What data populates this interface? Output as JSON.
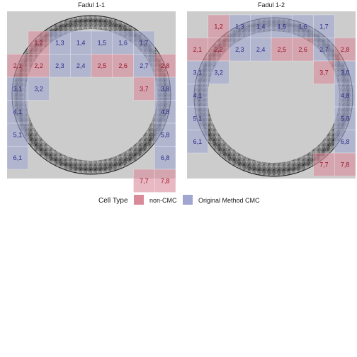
{
  "chart_data": {
    "type": "heatmap",
    "legend": {
      "title": "Cell Type",
      "placement": "bottom",
      "entries": [
        {
          "label": "non-CMC",
          "color": "#d98b9a"
        },
        {
          "label": "Original Method CMC",
          "color": "#9fa6cf"
        }
      ]
    },
    "colors": {
      "panel_background": "#cccccc",
      "non_cmc_text": "#a0102a",
      "cmc_text": "#2a2a8a"
    },
    "grid": {
      "rows": 8,
      "cols": 8
    },
    "panels": [
      {
        "title": "Fadul 1-1",
        "cells": [
          {
            "label": "1,2",
            "row": 1,
            "col": 2,
            "type": "non-CMC"
          },
          {
            "label": "1,3",
            "row": 1,
            "col": 3,
            "type": "Original Method CMC"
          },
          {
            "label": "1,4",
            "row": 1,
            "col": 4,
            "type": "Original Method CMC"
          },
          {
            "label": "1,5",
            "row": 1,
            "col": 5,
            "type": "Original Method CMC"
          },
          {
            "label": "1,6",
            "row": 1,
            "col": 6,
            "type": "Original Method CMC"
          },
          {
            "label": "1,7",
            "row": 1,
            "col": 7,
            "type": "Original Method CMC"
          },
          {
            "label": "2,1",
            "row": 2,
            "col": 1,
            "type": "non-CMC"
          },
          {
            "label": "2,2",
            "row": 2,
            "col": 2,
            "type": "non-CMC"
          },
          {
            "label": "2,3",
            "row": 2,
            "col": 3,
            "type": "Original Method CMC"
          },
          {
            "label": "2,4",
            "row": 2,
            "col": 4,
            "type": "Original Method CMC"
          },
          {
            "label": "2,5",
            "row": 2,
            "col": 5,
            "type": "non-CMC"
          },
          {
            "label": "2,6",
            "row": 2,
            "col": 6,
            "type": "non-CMC"
          },
          {
            "label": "2,7",
            "row": 2,
            "col": 7,
            "type": "Original Method CMC"
          },
          {
            "label": "2,8",
            "row": 2,
            "col": 8,
            "type": "non-CMC"
          },
          {
            "label": "3,1",
            "row": 3,
            "col": 1,
            "type": "Original Method CMC"
          },
          {
            "label": "3,2",
            "row": 3,
            "col": 2,
            "type": "Original Method CMC"
          },
          {
            "label": "3,7",
            "row": 3,
            "col": 7,
            "type": "non-CMC"
          },
          {
            "label": "3,8",
            "row": 3,
            "col": 8,
            "type": "Original Method CMC"
          },
          {
            "label": "4,1",
            "row": 4,
            "col": 1,
            "type": "Original Method CMC"
          },
          {
            "label": "4,8",
            "row": 4,
            "col": 8,
            "type": "Original Method CMC"
          },
          {
            "label": "5,1",
            "row": 5,
            "col": 1,
            "type": "Original Method CMC"
          },
          {
            "label": "5,8",
            "row": 5,
            "col": 8,
            "type": "Original Method CMC"
          },
          {
            "label": "6,1",
            "row": 6,
            "col": 1,
            "type": "Original Method CMC"
          },
          {
            "label": "6,8",
            "row": 6,
            "col": 8,
            "type": "Original Method CMC"
          },
          {
            "label": "7,7",
            "row": 7,
            "col": 7,
            "type": "non-CMC"
          },
          {
            "label": "7,8",
            "row": 7,
            "col": 8,
            "type": "non-CMC"
          }
        ]
      },
      {
        "title": "Fadul 1-2",
        "cells": [
          {
            "label": "1,2",
            "row": 1,
            "col": 2,
            "type": "non-CMC"
          },
          {
            "label": "1,3",
            "row": 1,
            "col": 3,
            "type": "Original Method CMC"
          },
          {
            "label": "1,4",
            "row": 1,
            "col": 4,
            "type": "Original Method CMC"
          },
          {
            "label": "1,5",
            "row": 1,
            "col": 5,
            "type": "Original Method CMC"
          },
          {
            "label": "1,6",
            "row": 1,
            "col": 6,
            "type": "Original Method CMC"
          },
          {
            "label": "1,7",
            "row": 1,
            "col": 7,
            "type": "Original Method CMC"
          },
          {
            "label": "2,1",
            "row": 2,
            "col": 1,
            "type": "non-CMC"
          },
          {
            "label": "2,2",
            "row": 2,
            "col": 2,
            "type": "non-CMC"
          },
          {
            "label": "2,3",
            "row": 2,
            "col": 3,
            "type": "Original Method CMC"
          },
          {
            "label": "2,4",
            "row": 2,
            "col": 4,
            "type": "Original Method CMC"
          },
          {
            "label": "2,5",
            "row": 2,
            "col": 5,
            "type": "non-CMC"
          },
          {
            "label": "2,6",
            "row": 2,
            "col": 6,
            "type": "non-CMC"
          },
          {
            "label": "2,7",
            "row": 2,
            "col": 7,
            "type": "Original Method CMC"
          },
          {
            "label": "2,8",
            "row": 2,
            "col": 8,
            "type": "non-CMC"
          },
          {
            "label": "3,1",
            "row": 3,
            "col": 1,
            "type": "Original Method CMC"
          },
          {
            "label": "3,2",
            "row": 3,
            "col": 2,
            "type": "Original Method CMC"
          },
          {
            "label": "3,7",
            "row": 3,
            "col": 7,
            "type": "non-CMC"
          },
          {
            "label": "3,8",
            "row": 3,
            "col": 8,
            "type": "Original Method CMC"
          },
          {
            "label": "4,1",
            "row": 4,
            "col": 1,
            "type": "Original Method CMC"
          },
          {
            "label": "4,8",
            "row": 4,
            "col": 8,
            "type": "Original Method CMC"
          },
          {
            "label": "5,1",
            "row": 5,
            "col": 1,
            "type": "Original Method CMC"
          },
          {
            "label": "5,8",
            "row": 5,
            "col": 8,
            "type": "Original Method CMC"
          },
          {
            "label": "6,1",
            "row": 6,
            "col": 1,
            "type": "Original Method CMC"
          },
          {
            "label": "6,8",
            "row": 6,
            "col": 8,
            "type": "Original Method CMC"
          },
          {
            "label": "7,7",
            "row": 7,
            "col": 7,
            "type": "non-CMC"
          },
          {
            "label": "7,8",
            "row": 7,
            "col": 8,
            "type": "non-CMC"
          }
        ]
      }
    ]
  }
}
